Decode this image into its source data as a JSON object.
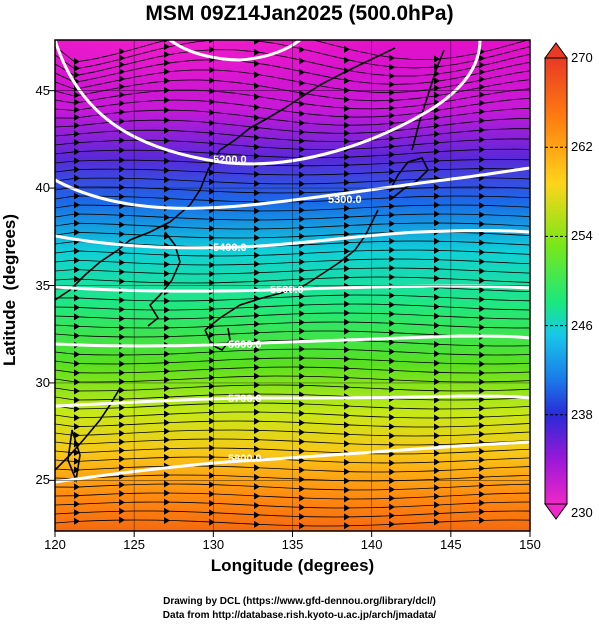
{
  "title": "MSM 09Z14Jan2025 (500.0hPa)",
  "map": {
    "xlabel": "Longitude (degrees)",
    "ylabel": "Latitude  (degrees)",
    "x_ticks": [
      "120",
      "125",
      "130",
      "135",
      "140",
      "145",
      "150"
    ],
    "y_ticks": [
      "45",
      "40",
      "35",
      "30",
      "25"
    ],
    "lon_range": [
      120,
      150
    ],
    "lat_range": [
      22.4,
      47.6
    ],
    "grid": true,
    "flow": "westerly (streamlines)"
  },
  "contours": [
    {
      "label": "5200.0"
    },
    {
      "label": "5300.0"
    },
    {
      "label": "5400.0"
    },
    {
      "label": "5500.0"
    },
    {
      "label": "5600.0"
    },
    {
      "label": "5700.0"
    },
    {
      "label": "5800.0"
    }
  ],
  "colorbar": {
    "min_label": "230",
    "max_label": "270",
    "tick_labels": [
      "270",
      "262",
      "254",
      "246",
      "238",
      "230"
    ],
    "colors": [
      "#e83a24",
      "#ff7a10",
      "#ffd41a",
      "#78e818",
      "#18e880",
      "#18c8e8",
      "#1a7bea",
      "#2a2ad8",
      "#9a18d8",
      "#ee28c8"
    ]
  },
  "footer": {
    "line1": "Drawing by DCL (https://www.gfd-dennou.org/library/dcl/)",
    "line2": "Data from http://database.rish.kyoto-u.ac.jp/arch/jmadata/"
  }
}
